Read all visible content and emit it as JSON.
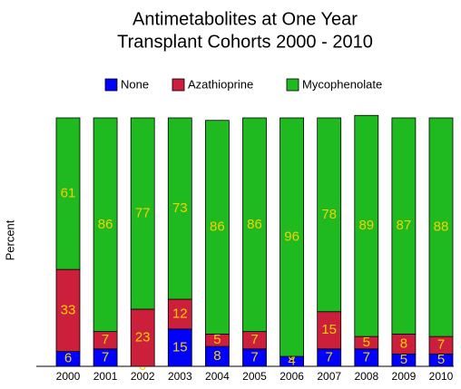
{
  "chart_data": {
    "type": "stacked-bar",
    "title": [
      "Antimetabolites at One Year",
      "Transplant Cohorts 2000 - 2010"
    ],
    "y_label": "Percent",
    "categories": [
      "2000",
      "2001",
      "2002",
      "2003",
      "2004",
      "2005",
      "2006",
      "2007",
      "2008",
      "2009",
      "2010"
    ],
    "series": [
      {
        "name": "None",
        "color": "#0000ff",
        "values": [
          6,
          7,
          0,
          15,
          8,
          7,
          4,
          7,
          7,
          5,
          5
        ]
      },
      {
        "name": "Azathioprine",
        "color": "#cc1f3c",
        "values": [
          33,
          7,
          23,
          12,
          5,
          7,
          0,
          15,
          5,
          8,
          7
        ]
      },
      {
        "name": "Mycophenolate",
        "color": "#1fba1f",
        "values": [
          61,
          86,
          77,
          73,
          86,
          86,
          96,
          78,
          89,
          87,
          88
        ]
      }
    ],
    "ylim": [
      0,
      100
    ],
    "label_color": "#f5d000"
  }
}
